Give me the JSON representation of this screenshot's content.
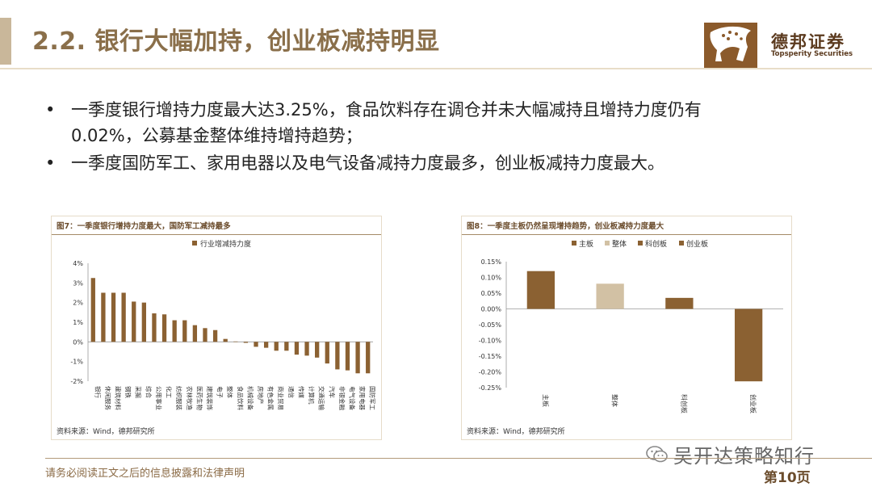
{
  "page": {
    "title": "2.2. 银行大幅加持，创业板减持明显",
    "page_number": "第10页",
    "footer_note": "请务必阅读正文之后的信息披露和法律声明",
    "watermark": "吴开达策略知行"
  },
  "logo": {
    "cn": "德邦证券",
    "en": "Topsperity Securities"
  },
  "bullets": [
    {
      "symbol": "•",
      "text": "一季度银行增持力度最大达3.25%，食品饮料存在调仓并未大幅减持且增持力度仍有0.02%，公募基金整体维持增持趋势；"
    },
    {
      "symbol": "•",
      "text": "一季度国防军工、家用电器以及电气设备减持力度最多，创业板减持力度最大。"
    }
  ],
  "colors": {
    "bar": "#8b6132",
    "bar_light": "#d2c1a4",
    "accent": "#8a6f4a"
  },
  "chart_data": [
    {
      "type": "bar",
      "header": "图7：一季度银行增持力度最大，国防军工减持最多",
      "source": "资料来源：Wind，德邦研究所",
      "legend": [
        "行业增减持力度"
      ],
      "categories": [
        "银行",
        "休闲服务",
        "建筑材料",
        "钢铁",
        "采掘",
        "综合",
        "公用事业",
        "化工",
        "纺织服装",
        "农林牧渔",
        "医药生物",
        "建筑装饰",
        "电子",
        "整体",
        "食品饮料",
        "机械设备",
        "房地产",
        "有色金属",
        "商业贸易",
        "通信",
        "传媒",
        "计算机",
        "交通运输",
        "汽车",
        "非银金融",
        "电气设备",
        "家用电器",
        "国防军工"
      ],
      "series": [
        {
          "name": "行业增减持力度",
          "values": [
            3.25,
            2.5,
            2.5,
            2.5,
            2.05,
            2.0,
            1.45,
            1.4,
            1.1,
            1.1,
            0.85,
            0.7,
            0.6,
            0.15,
            0.02,
            -0.05,
            -0.25,
            -0.3,
            -0.45,
            -0.45,
            -0.65,
            -0.7,
            -0.8,
            -1.1,
            -1.4,
            -1.45,
            -1.6,
            -1.6
          ]
        }
      ],
      "y_ticks": [
        "4%",
        "3%",
        "2%",
        "1%",
        "0%",
        "-1%",
        "-2%"
      ],
      "ylim": [
        -2,
        4
      ],
      "grid": false
    },
    {
      "type": "bar",
      "header": "图8：一季度主板仍然呈现增持趋势，创业板减持力度最大",
      "source": "资料来源：Wind，德邦研究所",
      "legend": [
        "主板",
        "整体",
        "科创板",
        "创业板"
      ],
      "categories": [
        "主板",
        "整体",
        "科创板",
        "创业板"
      ],
      "series": [
        {
          "name": "",
          "values": [
            0.12,
            0.08,
            0.035,
            -0.23
          ]
        }
      ],
      "bar_colors": [
        "#8b6132",
        "#d2c1a4",
        "#8b6132",
        "#8b6132"
      ],
      "y_ticks": [
        "0.15%",
        "0.10%",
        "0.05%",
        "0.00%",
        "-0.05%",
        "-0.10%",
        "-0.15%",
        "-0.20%",
        "-0.25%"
      ],
      "ylim": [
        -0.25,
        0.15
      ],
      "grid": false
    }
  ]
}
